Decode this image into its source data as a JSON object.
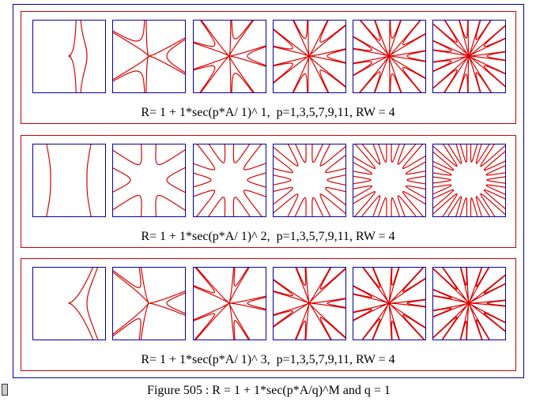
{
  "panels": [
    {
      "caption": "R= 1 + 1*sec(p*A/ 1)^ 1,  p=1,3,5,7,9,11, RW = 4"
    },
    {
      "caption": "R= 1 + 1*sec(p*A/ 1)^ 2,  p=1,3,5,7,9,11, RW = 4"
    },
    {
      "caption": "R= 1 + 1*sec(p*A/ 1)^ 3,  p=1,3,5,7,9,11, RW = 4"
    }
  ],
  "figure_caption": "Figure 505 : R = 1 + 1*sec(p*A/q)^M and q = 1"
}
